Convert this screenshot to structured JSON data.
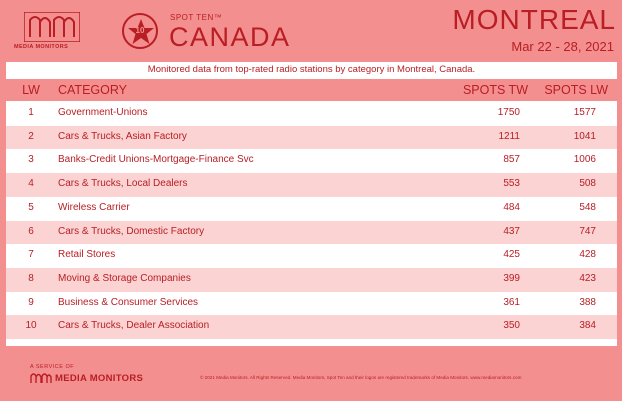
{
  "header": {
    "logo_text": "MEDIA MONITORS",
    "star_number": "10",
    "spot_ten": "SPOT TEN™",
    "country": "CANADA",
    "city": "MONTREAL",
    "dates": "Mar 22 - 28, 2021"
  },
  "subtitle": "Monitored data from top-rated radio stations by category in Montreal, Canada.",
  "columns": {
    "lw": "LW",
    "category": "CATEGORY",
    "spots_tw": "SPOTS TW",
    "spots_lw": "SPOTS LW"
  },
  "rows": [
    {
      "lw": "1",
      "category": "Government-Unions",
      "tw": "1750",
      "lw_spots": "1577"
    },
    {
      "lw": "2",
      "category": "Cars & Trucks, Asian Factory",
      "tw": "1211",
      "lw_spots": "1041"
    },
    {
      "lw": "3",
      "category": "Banks-Credit Unions-Mortgage-Finance Svc",
      "tw": "857",
      "lw_spots": "1006"
    },
    {
      "lw": "4",
      "category": "Cars & Trucks, Local Dealers",
      "tw": "553",
      "lw_spots": "508"
    },
    {
      "lw": "5",
      "category": "Wireless Carrier",
      "tw": "484",
      "lw_spots": "548"
    },
    {
      "lw": "6",
      "category": "Cars & Trucks, Domestic Factory",
      "tw": "437",
      "lw_spots": "747"
    },
    {
      "lw": "7",
      "category": "Retail Stores",
      "tw": "425",
      "lw_spots": "428"
    },
    {
      "lw": "8",
      "category": "Moving & Storage Companies",
      "tw": "399",
      "lw_spots": "423"
    },
    {
      "lw": "9",
      "category": "Business & Consumer Services",
      "tw": "361",
      "lw_spots": "388"
    },
    {
      "lw": "10",
      "category": "Cars & Trucks, Dealer Association",
      "tw": "350",
      "lw_spots": "384"
    }
  ],
  "footer": {
    "service_of": "A SERVICE OF",
    "brand": "MEDIA MONITORS",
    "copyright": "© 2021 Media Monitors. All Rights Reserved. Media Monitors, Spot Ten and their logos are registered trademarks of Media Monitors. www.mediamonitors.com"
  },
  "colors": {
    "brand_red": "#b81e24",
    "header_pink": "#f48f8f",
    "row_shade": "#fbd3d3"
  }
}
